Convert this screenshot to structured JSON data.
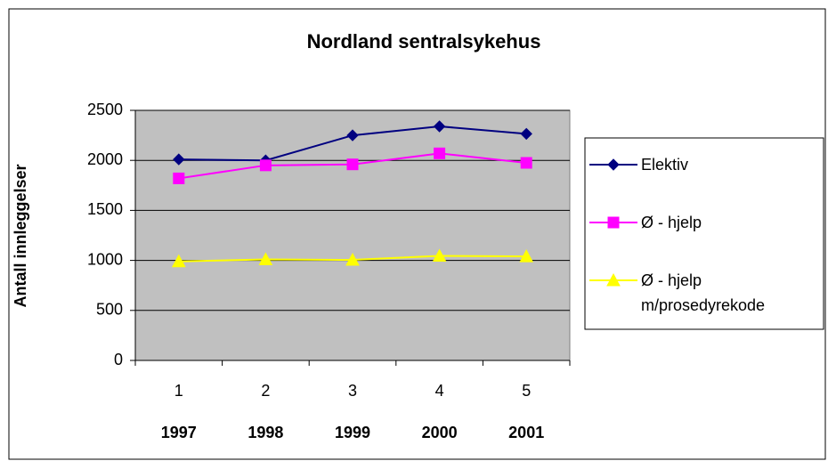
{
  "chart_data": {
    "type": "line",
    "title": "Nordland sentralsykehus",
    "y_label": "Antall innleggelser",
    "categories": [
      "1",
      "2",
      "3",
      "4",
      "5"
    ],
    "years": [
      "1997",
      "1998",
      "1999",
      "2000",
      "2001"
    ],
    "series": [
      {
        "name": "Elektiv",
        "color": "#000080",
        "marker": "diamond",
        "values": [
          2010,
          2000,
          2250,
          2340,
          2265
        ]
      },
      {
        "name": "Ø - hjelp",
        "color": "#ff00ff",
        "marker": "square",
        "values": [
          1820,
          1950,
          1960,
          2070,
          1975
        ]
      },
      {
        "name": "Ø - hjelp m/prosedyrekode",
        "color": "#ffff00",
        "marker": "triangle",
        "values": [
          990,
          1010,
          1005,
          1045,
          1040
        ]
      }
    ],
    "ylim": [
      0,
      2500
    ],
    "yticks": [
      0,
      500,
      1000,
      1500,
      2000,
      2500
    ],
    "grid": true,
    "legend": "right"
  }
}
